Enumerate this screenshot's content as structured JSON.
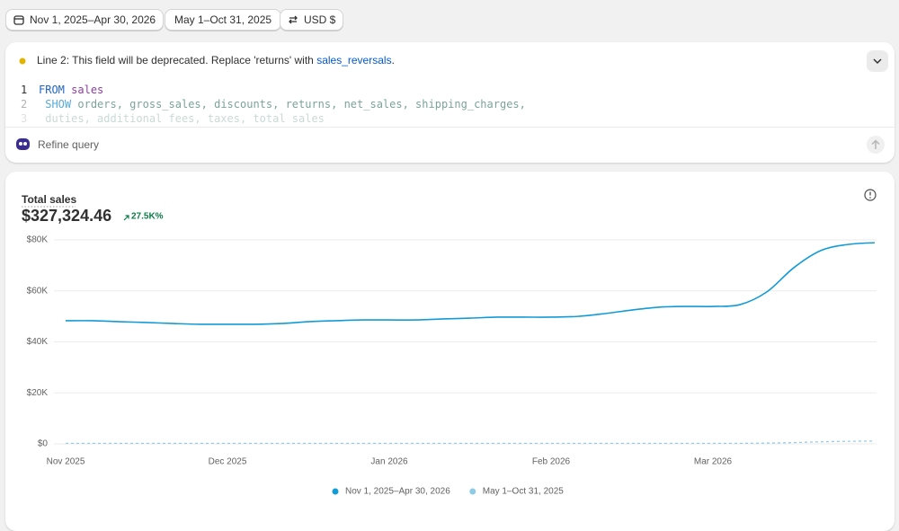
{
  "toolbar": {
    "date_range": "Nov 1, 2025–Apr 30, 2026",
    "compare_range": "May 1–Oct 31, 2025",
    "currency": "USD $"
  },
  "query": {
    "warning": "Line 2: This field will be deprecated. Replace 'returns' with ",
    "warning_link": "sales_reversals",
    "warning_end": ".",
    "lines": [
      {
        "number": 1,
        "keyword": "FROM",
        "text": "sales"
      },
      {
        "number": 2,
        "keyword": "SHOW",
        "text": "orders, gross_sales, discounts, returns, net_sales, shipping_charges,"
      },
      {
        "number": 3,
        "text": "duties, additional_fees, taxes, total_sales"
      }
    ],
    "refine_placeholder": "Refine query"
  },
  "chart_data": {
    "type": "line",
    "title": "Total sales",
    "total": "$327,324.46",
    "change": "27.5K%",
    "categories": [
      "Nov 2025",
      null,
      null,
      null,
      null,
      null,
      "Dec 2025",
      null,
      null,
      null,
      null,
      null,
      "Jan 2026",
      null,
      null,
      null,
      null,
      null,
      "Feb 2026",
      null,
      null,
      null,
      null,
      null,
      "Mar 2026",
      null,
      null,
      null,
      null,
      null,
      null
    ],
    "series": [
      {
        "name": "Nov 1, 2025–Apr 30, 2026",
        "color": "#139bd6",
        "dashed": false,
        "values": [
          48300,
          48300,
          47900,
          47600,
          47200,
          46900,
          46900,
          46900,
          47200,
          47900,
          48300,
          48600,
          48600,
          48600,
          49000,
          49300,
          49700,
          49700,
          49700,
          50000,
          51100,
          52500,
          53600,
          53900,
          53900,
          54600,
          59600,
          69100,
          75800,
          78200,
          78900
        ]
      },
      {
        "name": "May 1–Oct 31, 2025",
        "color": "#8ecbe6",
        "dashed": true,
        "values": [
          200,
          200,
          200,
          200,
          200,
          200,
          200,
          200,
          200,
          200,
          200,
          200,
          200,
          200,
          200,
          200,
          200,
          200,
          200,
          200,
          200,
          200,
          200,
          200,
          200,
          200,
          300,
          500,
          800,
          1000,
          1100
        ]
      }
    ],
    "ylim": [
      0,
      80000
    ],
    "yticks": [
      {
        "value": 0,
        "label": "$0"
      },
      {
        "value": 20000,
        "label": "$20K"
      },
      {
        "value": 40000,
        "label": "$40K"
      },
      {
        "value": 60000,
        "label": "$60K"
      },
      {
        "value": 80000,
        "label": "$80K"
      }
    ],
    "grid": true,
    "legend": "bottom"
  }
}
